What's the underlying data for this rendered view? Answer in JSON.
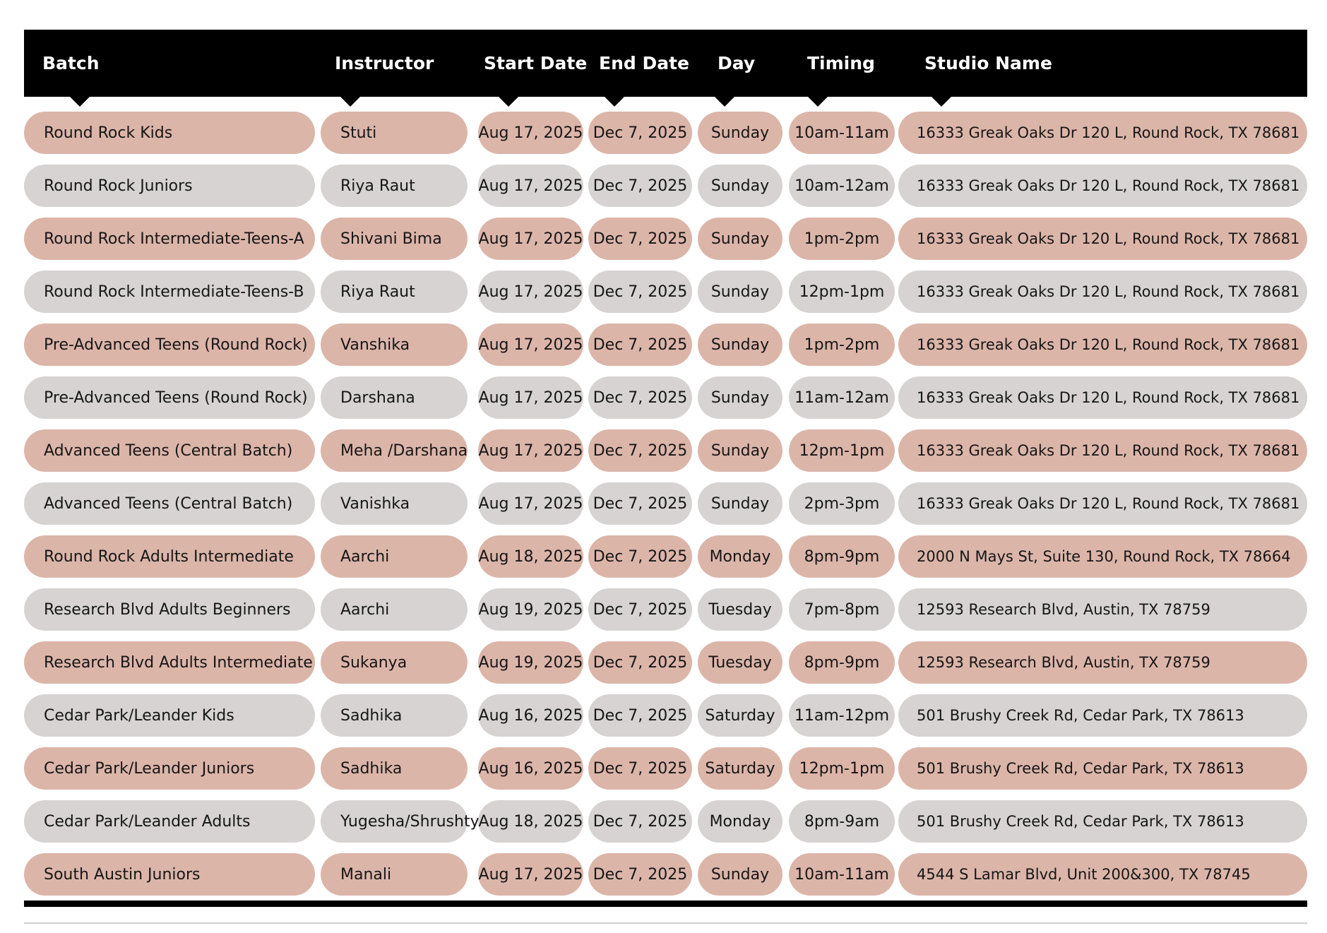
{
  "header": {
    "columns": [
      {
        "key": "batch",
        "label": "Batch"
      },
      {
        "key": "instructor",
        "label": "Instructor"
      },
      {
        "key": "start_date",
        "label": "Start Date"
      },
      {
        "key": "end_date",
        "label": "End Date"
      },
      {
        "key": "day",
        "label": "Day"
      },
      {
        "key": "timing",
        "label": "Timing"
      },
      {
        "key": "studio",
        "label": "Studio Name"
      }
    ]
  },
  "rows": [
    {
      "batch": "Round Rock Kids",
      "instructor": "Stuti",
      "start_date": "Aug 17, 2025",
      "end_date": "Dec 7, 2025",
      "day": "Sunday",
      "timing": "10am-11am",
      "studio": "16333 Greak Oaks Dr 120 L, Round Rock, TX 78681"
    },
    {
      "batch": "Round Rock Juniors",
      "instructor": "Riya Raut",
      "start_date": "Aug 17, 2025",
      "end_date": "Dec 7, 2025",
      "day": "Sunday",
      "timing": "10am-12am",
      "studio": "16333 Greak Oaks Dr 120 L, Round Rock, TX 78681"
    },
    {
      "batch": "Round Rock Intermediate-Teens-A",
      "instructor": "Shivani Bima",
      "start_date": "Aug 17, 2025",
      "end_date": "Dec 7, 2025",
      "day": "Sunday",
      "timing": "1pm-2pm",
      "studio": "16333 Greak Oaks Dr 120 L, Round Rock, TX 78681"
    },
    {
      "batch": "Round Rock Intermediate-Teens-B",
      "instructor": "Riya Raut",
      "start_date": "Aug 17, 2025",
      "end_date": "Dec 7, 2025",
      "day": "Sunday",
      "timing": "12pm-1pm",
      "studio": "16333 Greak Oaks Dr 120 L, Round Rock, TX 78681"
    },
    {
      "batch": "Pre-Advanced Teens (Round Rock)",
      "instructor": "Vanshika",
      "start_date": "Aug 17, 2025",
      "end_date": "Dec 7, 2025",
      "day": "Sunday",
      "timing": "1pm-2pm",
      "studio": "16333 Greak Oaks Dr 120 L, Round Rock, TX 78681"
    },
    {
      "batch": "Pre-Advanced Teens (Round Rock)",
      "instructor": "Darshana",
      "start_date": "Aug 17, 2025",
      "end_date": "Dec 7, 2025",
      "day": "Sunday",
      "timing": "11am-12am",
      "studio": "16333 Greak Oaks Dr 120 L, Round Rock, TX 78681"
    },
    {
      "batch": "Advanced Teens (Central Batch)",
      "instructor": "Meha /Darshana",
      "start_date": "Aug 17, 2025",
      "end_date": "Dec 7, 2025",
      "day": "Sunday",
      "timing": "12pm-1pm",
      "studio": "16333 Greak Oaks Dr 120 L, Round Rock, TX 78681"
    },
    {
      "batch": "Advanced Teens (Central Batch)",
      "instructor": "Vanishka",
      "start_date": "Aug 17, 2025",
      "end_date": "Dec 7, 2025",
      "day": "Sunday",
      "timing": "2pm-3pm",
      "studio": "16333 Greak Oaks Dr 120 L, Round Rock, TX 78681"
    },
    {
      "batch": "Round Rock Adults Intermediate",
      "instructor": "Aarchi",
      "start_date": "Aug 18, 2025",
      "end_date": "Dec 7, 2025",
      "day": "Monday",
      "timing": "8pm-9pm",
      "studio": "2000 N Mays St, Suite 130, Round Rock, TX 78664"
    },
    {
      "batch": "Research Blvd Adults Beginners",
      "instructor": "Aarchi",
      "start_date": "Aug 19, 2025",
      "end_date": "Dec 7, 2025",
      "day": "Tuesday",
      "timing": "7pm-8pm",
      "studio": "12593 Research Blvd, Austin, TX 78759"
    },
    {
      "batch": "Research Blvd Adults Intermediate",
      "instructor": "Sukanya",
      "start_date": "Aug 19, 2025",
      "end_date": "Dec 7, 2025",
      "day": "Tuesday",
      "timing": "8pm-9pm",
      "studio": "12593 Research Blvd, Austin, TX 78759"
    },
    {
      "batch": "Cedar Park/Leander Kids",
      "instructor": "Sadhika",
      "start_date": "Aug 16, 2025",
      "end_date": "Dec 7, 2025",
      "day": "Saturday",
      "timing": "11am-12pm",
      "studio": "501 Brushy Creek Rd, Cedar Park, TX 78613"
    },
    {
      "batch": "Cedar Park/Leander Juniors",
      "instructor": "Sadhika",
      "start_date": "Aug 16, 2025",
      "end_date": "Dec 7, 2025",
      "day": "Saturday",
      "timing": "12pm-1pm",
      "studio": "501 Brushy Creek Rd, Cedar Park, TX 78613"
    },
    {
      "batch": "Cedar Park/Leander Adults",
      "instructor": "Yugesha/Shrushty",
      "start_date": "Aug 18, 2025",
      "end_date": "Dec 7, 2025",
      "day": "Monday",
      "timing": "8pm-9am",
      "studio": "501 Brushy Creek Rd, Cedar Park, TX 78613"
    },
    {
      "batch": "South Austin Juniors",
      "instructor": "Manali",
      "start_date": "Aug 17, 2025",
      "end_date": "Dec 7, 2025",
      "day": "Sunday",
      "timing": "10am-11am",
      "studio": "4544 S Lamar Blvd, Unit 200&300, TX 78745"
    }
  ],
  "colors": {
    "rose": "#dcb5a9",
    "grey": "#d6d3d2",
    "header_bg": "#000000",
    "header_text": "#ffffff"
  }
}
